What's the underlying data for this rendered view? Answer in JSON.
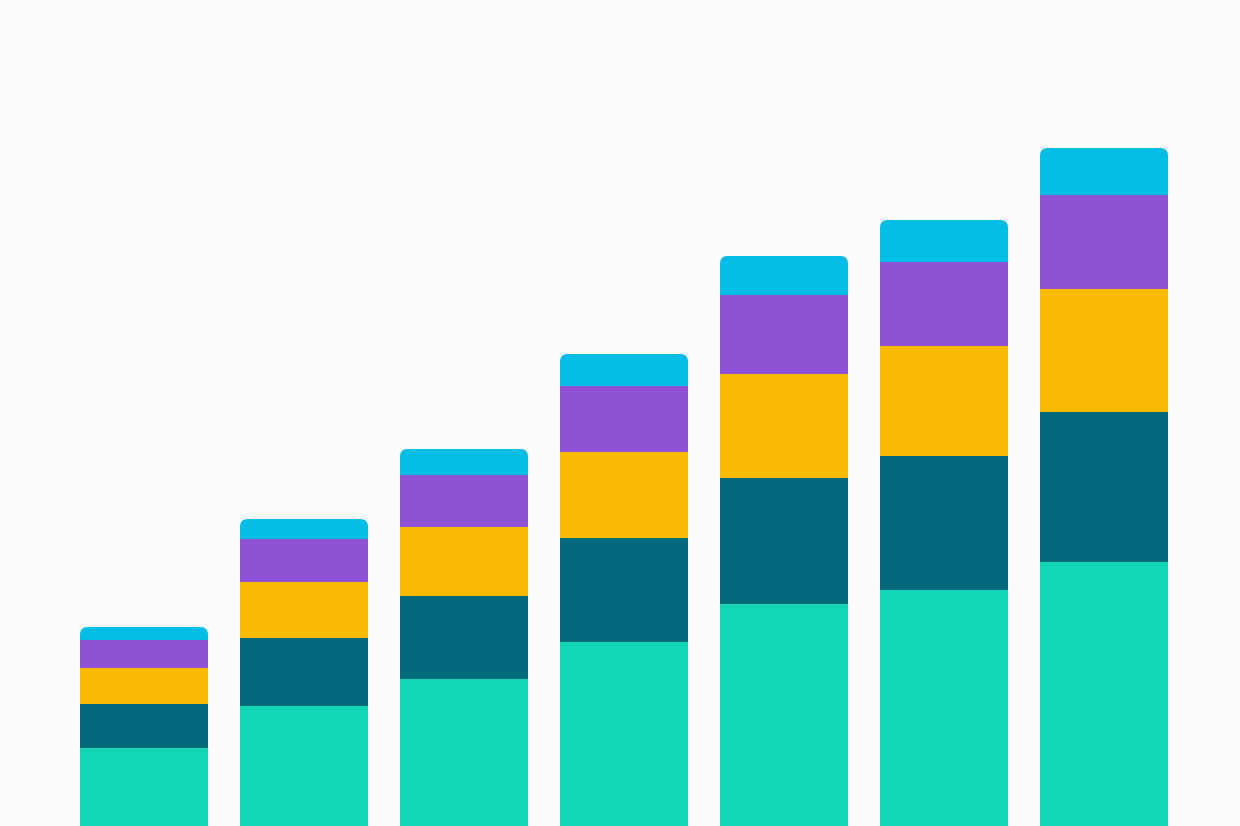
{
  "colors": {
    "background": "#f9f9f9",
    "series": [
      "#11d6b6",
      "#016a7d",
      "#f8bb01",
      "#8f51d5",
      "#04bde4"
    ]
  },
  "chart_data": {
    "type": "bar",
    "stacked": true,
    "categories": [
      "",
      "",
      "",
      "",
      "",
      "",
      ""
    ],
    "series": [
      {
        "values": [
          78,
          120,
          147,
          184,
          222,
          236,
          264
        ]
      },
      {
        "values": [
          44,
          68,
          83,
          104,
          126,
          134,
          150
        ]
      },
      {
        "values": [
          36,
          56,
          69,
          86,
          104,
          110,
          123
        ]
      },
      {
        "values": [
          28,
          43,
          52,
          66,
          79,
          84,
          94
        ]
      },
      {
        "values": [
          13,
          20,
          26,
          32,
          39,
          42,
          47
        ]
      }
    ],
    "ylim": [
      0,
      826
    ],
    "grid": false,
    "legend": "none",
    "title": "",
    "xlabel": "",
    "ylabel": ""
  }
}
